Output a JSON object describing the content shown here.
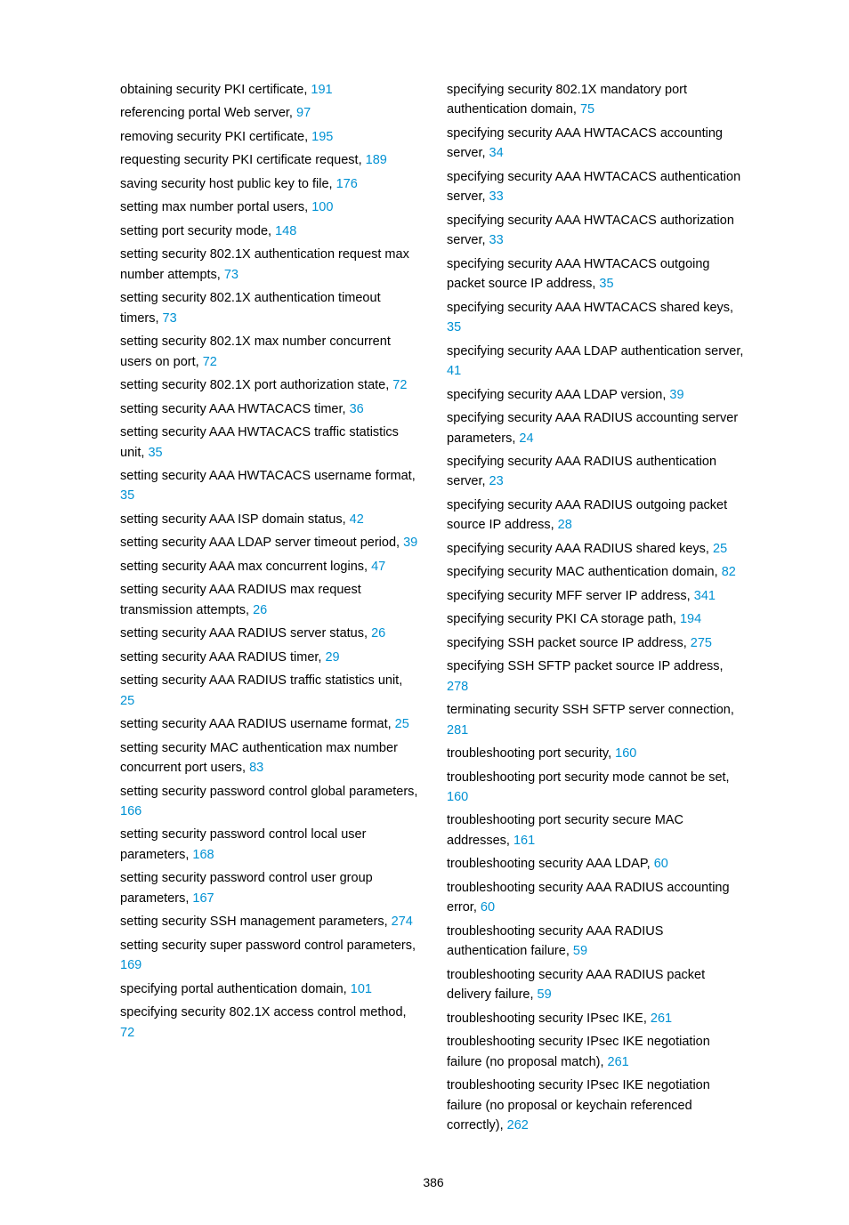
{
  "page_number": "386",
  "link_color": "#0091d3",
  "text_color": "#000000",
  "background_color": "#ffffff",
  "font_family": "Arial, Helvetica, sans-serif",
  "font_size_pt": 11,
  "line_height": 1.55,
  "columns": [
    [
      {
        "text": "obtaining security PKI certificate, ",
        "page": "191"
      },
      {
        "text": "referencing portal Web server, ",
        "page": "97"
      },
      {
        "text": "removing security PKI certificate, ",
        "page": "195"
      },
      {
        "text": "requesting security PKI certificate request, ",
        "page": "189"
      },
      {
        "text": "saving security host public key to file, ",
        "page": "176"
      },
      {
        "text": "setting max number portal users, ",
        "page": "100"
      },
      {
        "text": "setting port security mode, ",
        "page": "148"
      },
      {
        "text": "setting security 802.1X authentication request max number attempts, ",
        "page": "73"
      },
      {
        "text": "setting security 802.1X authentication timeout timers, ",
        "page": "73"
      },
      {
        "text": "setting security 802.1X max number concurrent users on port, ",
        "page": "72"
      },
      {
        "text": "setting security 802.1X port authorization state, ",
        "page": "72"
      },
      {
        "text": "setting security AAA HWTACACS timer, ",
        "page": "36"
      },
      {
        "text": "setting security AAA HWTACACS traffic statistics unit, ",
        "page": "35"
      },
      {
        "text": "setting security AAA HWTACACS username format, ",
        "page": "35"
      },
      {
        "text": "setting security AAA ISP domain status, ",
        "page": "42"
      },
      {
        "text": "setting security AAA LDAP server timeout period, ",
        "page": "39"
      },
      {
        "text": "setting security AAA max concurrent logins, ",
        "page": "47"
      },
      {
        "text": "setting security AAA RADIUS max request transmission attempts, ",
        "page": "26"
      },
      {
        "text": "setting security AAA RADIUS server status, ",
        "page": "26"
      },
      {
        "text": "setting security AAA RADIUS timer, ",
        "page": "29"
      },
      {
        "text": "setting security AAA RADIUS traffic statistics unit, ",
        "page": "25"
      },
      {
        "text": "setting security AAA RADIUS username format, ",
        "page": "25"
      },
      {
        "text": "setting security MAC authentication max number concurrent port users, ",
        "page": "83"
      },
      {
        "text": "setting security password control global parameters, ",
        "page": "166"
      },
      {
        "text": "setting security password control local user parameters, ",
        "page": "168"
      },
      {
        "text": "setting security password control user group parameters, ",
        "page": "167"
      },
      {
        "text": "setting security SSH management parameters, ",
        "page": "274"
      },
      {
        "text": "setting security super password control parameters, ",
        "page": "169"
      },
      {
        "text": "specifying portal authentication domain, ",
        "page": "101"
      },
      {
        "text": "specifying security 802.1X access control method, ",
        "page": "72"
      }
    ],
    [
      {
        "text": "specifying security 802.1X mandatory port authentication domain, ",
        "page": "75"
      },
      {
        "text": "specifying security AAA HWTACACS accounting server, ",
        "page": "34"
      },
      {
        "text": "specifying security AAA HWTACACS authentication server, ",
        "page": "33"
      },
      {
        "text": "specifying security AAA HWTACACS authorization server, ",
        "page": "33"
      },
      {
        "text": "specifying security AAA HWTACACS outgoing packet source IP address, ",
        "page": "35"
      },
      {
        "text": "specifying security AAA HWTACACS shared keys, ",
        "page": "35"
      },
      {
        "text": "specifying security AAA LDAP authentication server, ",
        "page": "41"
      },
      {
        "text": "specifying security AAA LDAP version, ",
        "page": "39"
      },
      {
        "text": "specifying security AAA RADIUS accounting server parameters, ",
        "page": "24"
      },
      {
        "text": "specifying security AAA RADIUS authentication server, ",
        "page": "23"
      },
      {
        "text": "specifying security AAA RADIUS outgoing packet source IP address, ",
        "page": "28"
      },
      {
        "text": "specifying security AAA RADIUS shared keys, ",
        "page": "25"
      },
      {
        "text": "specifying security MAC authentication domain, ",
        "page": "82"
      },
      {
        "text": "specifying security MFF server IP address, ",
        "page": "341"
      },
      {
        "text": "specifying security PKI CA storage path, ",
        "page": "194"
      },
      {
        "text": "specifying SSH packet source IP address, ",
        "page": "275"
      },
      {
        "text": "specifying SSH SFTP packet source IP address, ",
        "page": "278"
      },
      {
        "text": "terminating security SSH SFTP server connection, ",
        "page": "281"
      },
      {
        "text": "troubleshooting port security, ",
        "page": "160"
      },
      {
        "text": "troubleshooting port security mode cannot be set, ",
        "page": "160"
      },
      {
        "text": "troubleshooting port security secure MAC addresses, ",
        "page": "161"
      },
      {
        "text": "troubleshooting security AAA LDAP, ",
        "page": "60"
      },
      {
        "text": "troubleshooting security AAA RADIUS accounting error, ",
        "page": "60"
      },
      {
        "text": "troubleshooting security AAA RADIUS authentication failure, ",
        "page": "59"
      },
      {
        "text": "troubleshooting security AAA RADIUS packet delivery failure, ",
        "page": "59"
      },
      {
        "text": "troubleshooting security IPsec IKE, ",
        "page": "261"
      },
      {
        "text": "troubleshooting security IPsec IKE negotiation failure (no proposal match), ",
        "page": "261"
      },
      {
        "text": "troubleshooting security IPsec IKE negotiation failure (no proposal or keychain referenced correctly), ",
        "page": "262"
      }
    ]
  ]
}
